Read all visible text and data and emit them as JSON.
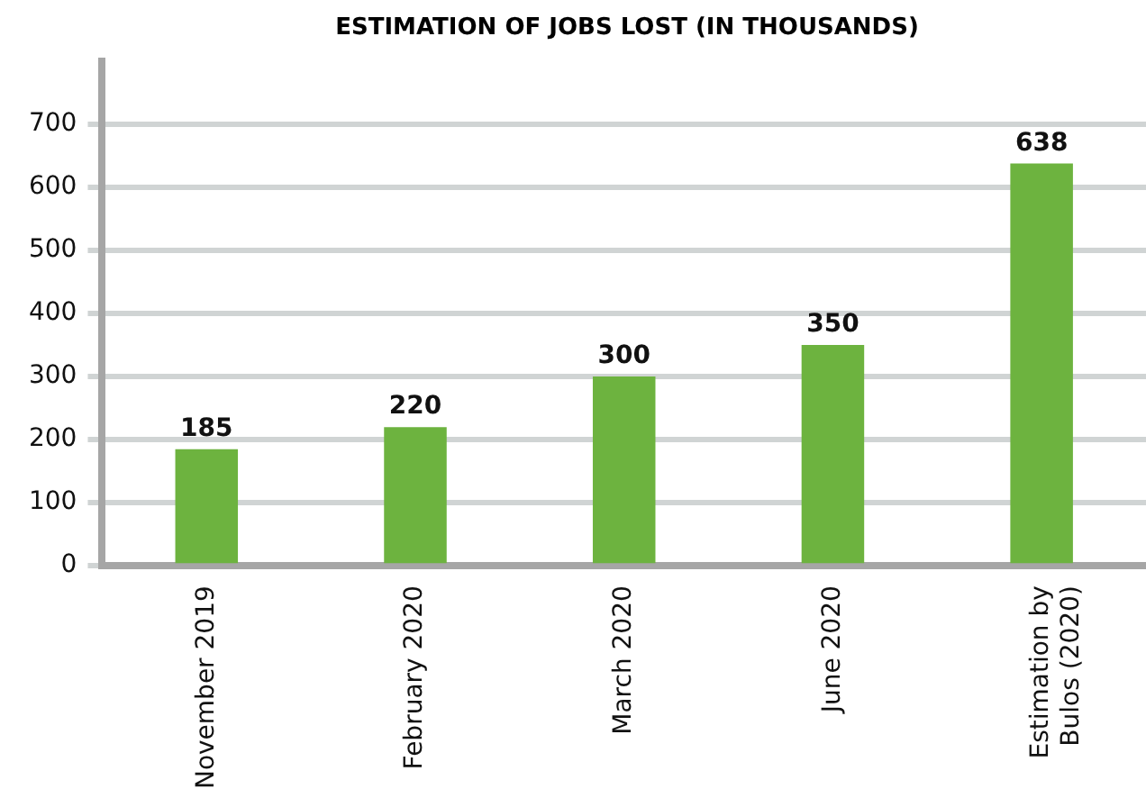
{
  "chart_data": {
    "type": "bar",
    "title": "ESTIMATION OF JOBS LOST (IN THOUSANDS)",
    "categories": [
      "November 2019",
      "February 2020",
      "March 2020",
      "June 2020",
      "Estimation by Bulos (2020)"
    ],
    "values": [
      185,
      220,
      300,
      350,
      638
    ],
    "color": "#6db33f",
    "ylim": [
      0,
      800
    ],
    "yticks": [
      0,
      100,
      200,
      300,
      400,
      500,
      600,
      700
    ],
    "grid": "y",
    "data_labels": true
  }
}
